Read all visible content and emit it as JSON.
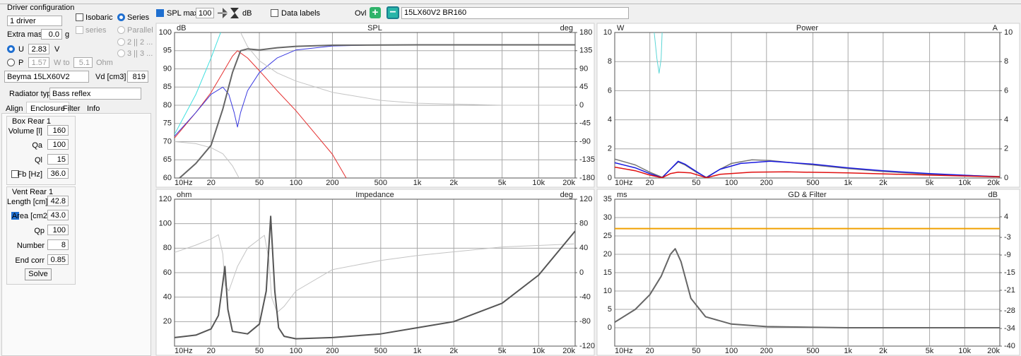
{
  "panel": {
    "title": "Driver configuration",
    "driver_count": "1 driver",
    "isobaric": "Isobaric",
    "series_mode": "Series",
    "series_small": "series",
    "parallel": "Parallel",
    "p2": "2 || 2 ...",
    "p3": "3 || 3 ...",
    "extra_mass": {
      "label": "Extra mass",
      "value": "0.0",
      "unit": "g"
    },
    "u": {
      "label": "U",
      "value": "2.83",
      "unit": "V"
    },
    "p": {
      "label": "P",
      "value": "1.57",
      "unit": "W to",
      "ohm_value": "5.1",
      "ohm_unit": "Ohm"
    },
    "driver_name": "Beyma 15LX60V2",
    "vd": {
      "label": "Vd [cm3]",
      "value": "819"
    },
    "radiator": {
      "label": "Radiator type",
      "value": "Bass reflex"
    },
    "tabs": [
      "Align",
      "Enclosure",
      "Filter",
      "Info"
    ],
    "box": {
      "title": "Box Rear 1",
      "fields": [
        {
          "label": "Volume [l]",
          "value": "160"
        },
        {
          "label": "Qa",
          "value": "100"
        },
        {
          "label": "Ql",
          "value": "15"
        },
        {
          "label": "Fb [Hz]",
          "value": "36.0"
        }
      ]
    },
    "vent": {
      "title": "Vent Rear 1",
      "fields": [
        {
          "label": "Length [cm]",
          "value": "42.8"
        },
        {
          "label": "Area [cm2",
          "value": "43.0"
        },
        {
          "label": "Qp",
          "value": "100"
        },
        {
          "label": "Number",
          "value": "8"
        },
        {
          "label": "End corr",
          "value": "0.85"
        }
      ]
    },
    "solve": "Solve"
  },
  "toolbar": {
    "spl_max": "SPL max",
    "spl_max_value": "100",
    "spl_unit": "dB",
    "data_labels": "Data labels",
    "ovl": "Ovl",
    "overlay_name": "15LX60V2 BR160"
  },
  "chart_data": [
    {
      "type": "line",
      "title": "SPL",
      "y_label": "dB",
      "y2_label": "deg",
      "xscale": "log",
      "grid": true,
      "xlim": [
        10,
        20000
      ],
      "xticks": [
        {
          "value": 10,
          "label": "10Hz"
        },
        20,
        50,
        100,
        200,
        500,
        {
          "value": 1000,
          "label": "1k"
        },
        {
          "value": 2000,
          "label": "2k"
        },
        {
          "value": 5000,
          "label": "5k"
        },
        {
          "value": 10000,
          "label": "10k"
        },
        {
          "value": 20000,
          "label": "20k"
        }
      ],
      "ylim": [
        60,
        100
      ],
      "yticks": [
        60,
        65,
        70,
        75,
        80,
        85,
        90,
        95,
        100
      ],
      "y2lim": [
        -180,
        180
      ],
      "y2ticks": [
        -180,
        -135,
        -90,
        -45,
        0,
        45,
        90,
        135,
        180
      ],
      "series": [
        {
          "color": "#40e0e0",
          "width": 1,
          "axis": "y",
          "x": [
            10,
            15,
            20,
            24
          ],
          "values": [
            72,
            83,
            93,
            100
          ]
        },
        {
          "color": "#e53030",
          "width": 1,
          "axis": "y",
          "x": [
            10,
            15,
            20,
            25,
            30,
            33,
            40,
            50,
            70,
            100,
            150,
            200,
            260
          ],
          "values": [
            71,
            78,
            83.5,
            89,
            93.5,
            95,
            93,
            89.5,
            84,
            78.5,
            71.5,
            66.5,
            60
          ]
        },
        {
          "color": "#3a3ae0",
          "width": 1,
          "axis": "y",
          "x": [
            10,
            15,
            20,
            25,
            28,
            31,
            33,
            35,
            40,
            50,
            70,
            100,
            200,
            500,
            20000
          ],
          "values": [
            71.5,
            78,
            83,
            85,
            83,
            78,
            74,
            78,
            84,
            89,
            93,
            95.2,
            96.3,
            96.6,
            96.6
          ]
        },
        {
          "color": "#c4c4c4",
          "width": 1,
          "axis": "y2",
          "x": [
            35,
            40,
            50,
            70,
            100,
            200,
            500,
            1000,
            5000,
            20000
          ],
          "values": [
            180,
            145,
            110,
            80,
            60,
            32,
            12,
            5,
            0,
            0
          ]
        },
        {
          "color": "#c4c4c4",
          "width": 1,
          "axis": "y2",
          "x": [
            10,
            15,
            20,
            25,
            30,
            34
          ],
          "values": [
            -90,
            -95,
            -105,
            -120,
            -150,
            -180
          ]
        },
        {
          "color": "#666666",
          "width": 2,
          "axis": "y",
          "x": [
            11,
            15,
            20,
            25,
            30,
            35,
            40,
            50,
            70,
            100,
            200,
            1000,
            20000
          ],
          "values": [
            60,
            64,
            69,
            79,
            89,
            95,
            95.5,
            95.2,
            95.8,
            96.2,
            96.5,
            96.6,
            96.6
          ]
        }
      ]
    },
    {
      "type": "line",
      "title": "Power",
      "y_label": "W",
      "y2_label": "A",
      "xscale": "log",
      "grid": true,
      "xlim": [
        10,
        20000
      ],
      "xticks": [
        {
          "value": 10,
          "label": "10Hz"
        },
        20,
        50,
        100,
        200,
        500,
        {
          "value": 1000,
          "label": "1k"
        },
        {
          "value": 2000,
          "label": "2k"
        },
        {
          "value": 5000,
          "label": "5k"
        },
        {
          "value": 10000,
          "label": "10k"
        },
        {
          "value": 20000,
          "label": "20k"
        }
      ],
      "ylim": [
        0,
        10
      ],
      "yticks": [
        0,
        2,
        4,
        6,
        8,
        10
      ],
      "y2lim": [
        0,
        10
      ],
      "y2ticks": [
        0,
        2,
        4,
        6,
        8,
        10
      ],
      "series": [
        {
          "color": "#777777",
          "width": 1.5,
          "axis": "y",
          "x": [
            10,
            15,
            20,
            25.5,
            30,
            35,
            40,
            50,
            61,
            80,
            100,
            150,
            215,
            500,
            1000,
            2000,
            5000,
            20000
          ],
          "values": [
            1.3,
            0.9,
            0.4,
            0.05,
            0.6,
            1.1,
            0.9,
            0.4,
            0.05,
            0.6,
            1.0,
            1.25,
            1.2,
            0.9,
            0.65,
            0.45,
            0.25,
            0.1
          ]
        },
        {
          "color": "#1a1ae0",
          "width": 1.5,
          "axis": "y",
          "x": [
            10,
            15,
            20,
            25.5,
            30,
            35,
            40,
            50,
            61,
            80,
            120,
            215,
            500,
            1000,
            2000,
            5000,
            20000
          ],
          "values": [
            1.05,
            0.7,
            0.3,
            0.02,
            0.6,
            1.15,
            0.95,
            0.45,
            0.02,
            0.6,
            1.0,
            1.15,
            0.95,
            0.7,
            0.5,
            0.3,
            0.08
          ]
        },
        {
          "color": "#e01010",
          "width": 1.5,
          "axis": "y",
          "x": [
            10,
            15,
            20,
            25.5,
            30,
            35,
            45,
            61,
            80,
            150,
            300,
            1000,
            5000,
            20000
          ],
          "values": [
            0.75,
            0.5,
            0.2,
            0.02,
            0.3,
            0.4,
            0.35,
            0.02,
            0.25,
            0.4,
            0.42,
            0.35,
            0.2,
            0.08
          ]
        },
        {
          "color": "#5cd6d6",
          "width": 1,
          "axis": "y",
          "x": [
            21.8,
            23,
            24,
            25,
            25.5
          ],
          "values": [
            10,
            8.2,
            7.2,
            8.2,
            10
          ]
        }
      ]
    },
    {
      "type": "line",
      "title": "Impedance",
      "y_label": "ohm",
      "y2_label": "deg",
      "xscale": "log",
      "grid": true,
      "xlim": [
        10,
        20000
      ],
      "xticks": [
        {
          "value": 10,
          "label": "10Hz"
        },
        20,
        50,
        100,
        200,
        500,
        {
          "value": 1000,
          "label": "1k"
        },
        {
          "value": 2000,
          "label": "2k"
        },
        {
          "value": 5000,
          "label": "5k"
        },
        {
          "value": 10000,
          "label": "10k"
        },
        {
          "value": 20000,
          "label": "20k"
        }
      ],
      "ylim": [
        0,
        120
      ],
      "yticks": [
        20,
        40,
        60,
        80,
        100,
        120
      ],
      "y2lim": [
        -120,
        120
      ],
      "y2ticks": [
        -120,
        -80,
        -40,
        0,
        40,
        80,
        120
      ],
      "series": [
        {
          "color": "#c4c4c4",
          "width": 1,
          "axis": "y2",
          "x": [
            10,
            15,
            20,
            23,
            25,
            26,
            28,
            33,
            40,
            55,
            60,
            63,
            70,
            80,
            100,
            200,
            500,
            1000,
            5000,
            20000
          ],
          "values": [
            33,
            45,
            55,
            62,
            30,
            -20,
            -30,
            10,
            40,
            61,
            20,
            -40,
            -65,
            -55,
            -30,
            5,
            20,
            28,
            42,
            47
          ]
        },
        {
          "color": "#555555",
          "width": 2,
          "axis": "y",
          "x": [
            10,
            15,
            20,
            23,
            24.5,
            26,
            27.5,
            30,
            40,
            50,
            57,
            62,
            67,
            72,
            80,
            100,
            200,
            500,
            1000,
            2000,
            5000,
            10000,
            20000
          ],
          "values": [
            7,
            9,
            14,
            25,
            45,
            65,
            30,
            12,
            10,
            18,
            45,
            106,
            45,
            15,
            8,
            6,
            7,
            10,
            15,
            20,
            35,
            58,
            94
          ]
        }
      ]
    },
    {
      "type": "line",
      "title": "GD & Filter",
      "y_label": "ms",
      "y2_label": "dB",
      "xscale": "log",
      "grid": true,
      "xlim": [
        10,
        20000
      ],
      "xticks": [
        {
          "value": 10,
          "label": "10Hz"
        },
        20,
        50,
        100,
        200,
        500,
        {
          "value": 1000,
          "label": "1k"
        },
        {
          "value": 2000,
          "label": "2k"
        },
        {
          "value": 5000,
          "label": "5k"
        },
        {
          "value": 10000,
          "label": "10k"
        },
        {
          "value": 20000,
          "label": "20k"
        }
      ],
      "ylim": [
        -5,
        35
      ],
      "yticks": [
        0,
        5,
        10,
        15,
        20,
        25,
        30,
        35
      ],
      "y2lim": [
        -40,
        10
      ],
      "y2ticks": [
        4,
        -3,
        -9,
        -15,
        -21,
        -28,
        -34,
        -40
      ],
      "series": [
        {
          "color": "#f0a000",
          "width": 2,
          "axis": "y2",
          "x": [
            10,
            20000
          ],
          "values": [
            0,
            0
          ]
        },
        {
          "color": "#666666",
          "width": 2,
          "axis": "y",
          "x": [
            10,
            15,
            20,
            25,
            30,
            33,
            37,
            45,
            60,
            100,
            200,
            1000,
            20000
          ],
          "values": [
            1.5,
            5,
            9,
            14,
            20,
            21.5,
            18,
            8,
            3,
            1,
            0.3,
            0,
            0
          ]
        }
      ]
    }
  ]
}
